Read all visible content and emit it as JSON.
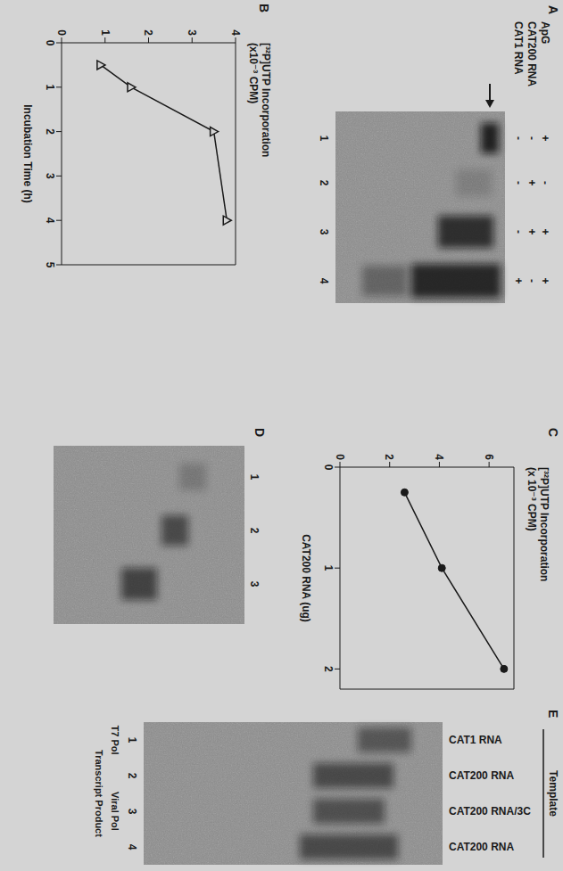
{
  "chart_data": [
    {
      "panel": "B",
      "type": "line",
      "ylabel": "[³²P]UTP Incorporation (x10⁻³ CPM)",
      "xlabel": "Incubation Time (h)",
      "x": [
        0.5,
        1,
        2,
        4
      ],
      "values": [
        0.9,
        1.6,
        3.5,
        3.8
      ],
      "xlim": [
        0,
        5
      ],
      "xticks": [
        0,
        1,
        2,
        3,
        4,
        5
      ],
      "ylim": [
        0,
        4
      ],
      "yticks": [
        0,
        1,
        2,
        3,
        4
      ],
      "marker": "triangle",
      "color": "#1a1a1a"
    },
    {
      "panel": "C",
      "type": "line",
      "ylabel": "[³²P]UTP Incorporation (x 10⁻³ CPM)",
      "xlabel": "CAT200 RNA (ug)",
      "x": [
        0.25,
        1,
        2
      ],
      "values": [
        2.6,
        4.1,
        6.6
      ],
      "xlim": [
        0,
        2.2
      ],
      "xticks": [
        0,
        1,
        2
      ],
      "ylim": [
        0,
        7
      ],
      "yticks": [
        0,
        2,
        4,
        6
      ],
      "marker": "circle",
      "color": "#1a1a1a"
    }
  ],
  "gels": [
    {
      "panel": "A",
      "row_labels": [
        "ApG",
        "CAT200 RNA",
        "CAT1 RNA"
      ],
      "signs": [
        [
          "+",
          "-",
          "+",
          "+"
        ],
        [
          "-",
          "+",
          "+",
          "-"
        ],
        [
          "-",
          "-",
          "-",
          "+"
        ]
      ],
      "lanes": [
        1,
        2,
        3,
        4
      ]
    },
    {
      "panel": "D",
      "lanes": [
        1,
        2,
        3
      ]
    },
    {
      "panel": "E",
      "template_label": "Template",
      "templates": [
        "CAT1 RNA",
        "CAT200 RNA",
        "CAT200 RNA/3C",
        "CAT200 RNA"
      ],
      "lanes": [
        1,
        2,
        3,
        4
      ],
      "polymerases": [
        {
          "label": "T7 Pol",
          "lanes": [
            1
          ]
        },
        {
          "label": "Viral Pol",
          "lanes": [
            2,
            3,
            4
          ]
        }
      ],
      "footer": "Transcript Product"
    }
  ]
}
